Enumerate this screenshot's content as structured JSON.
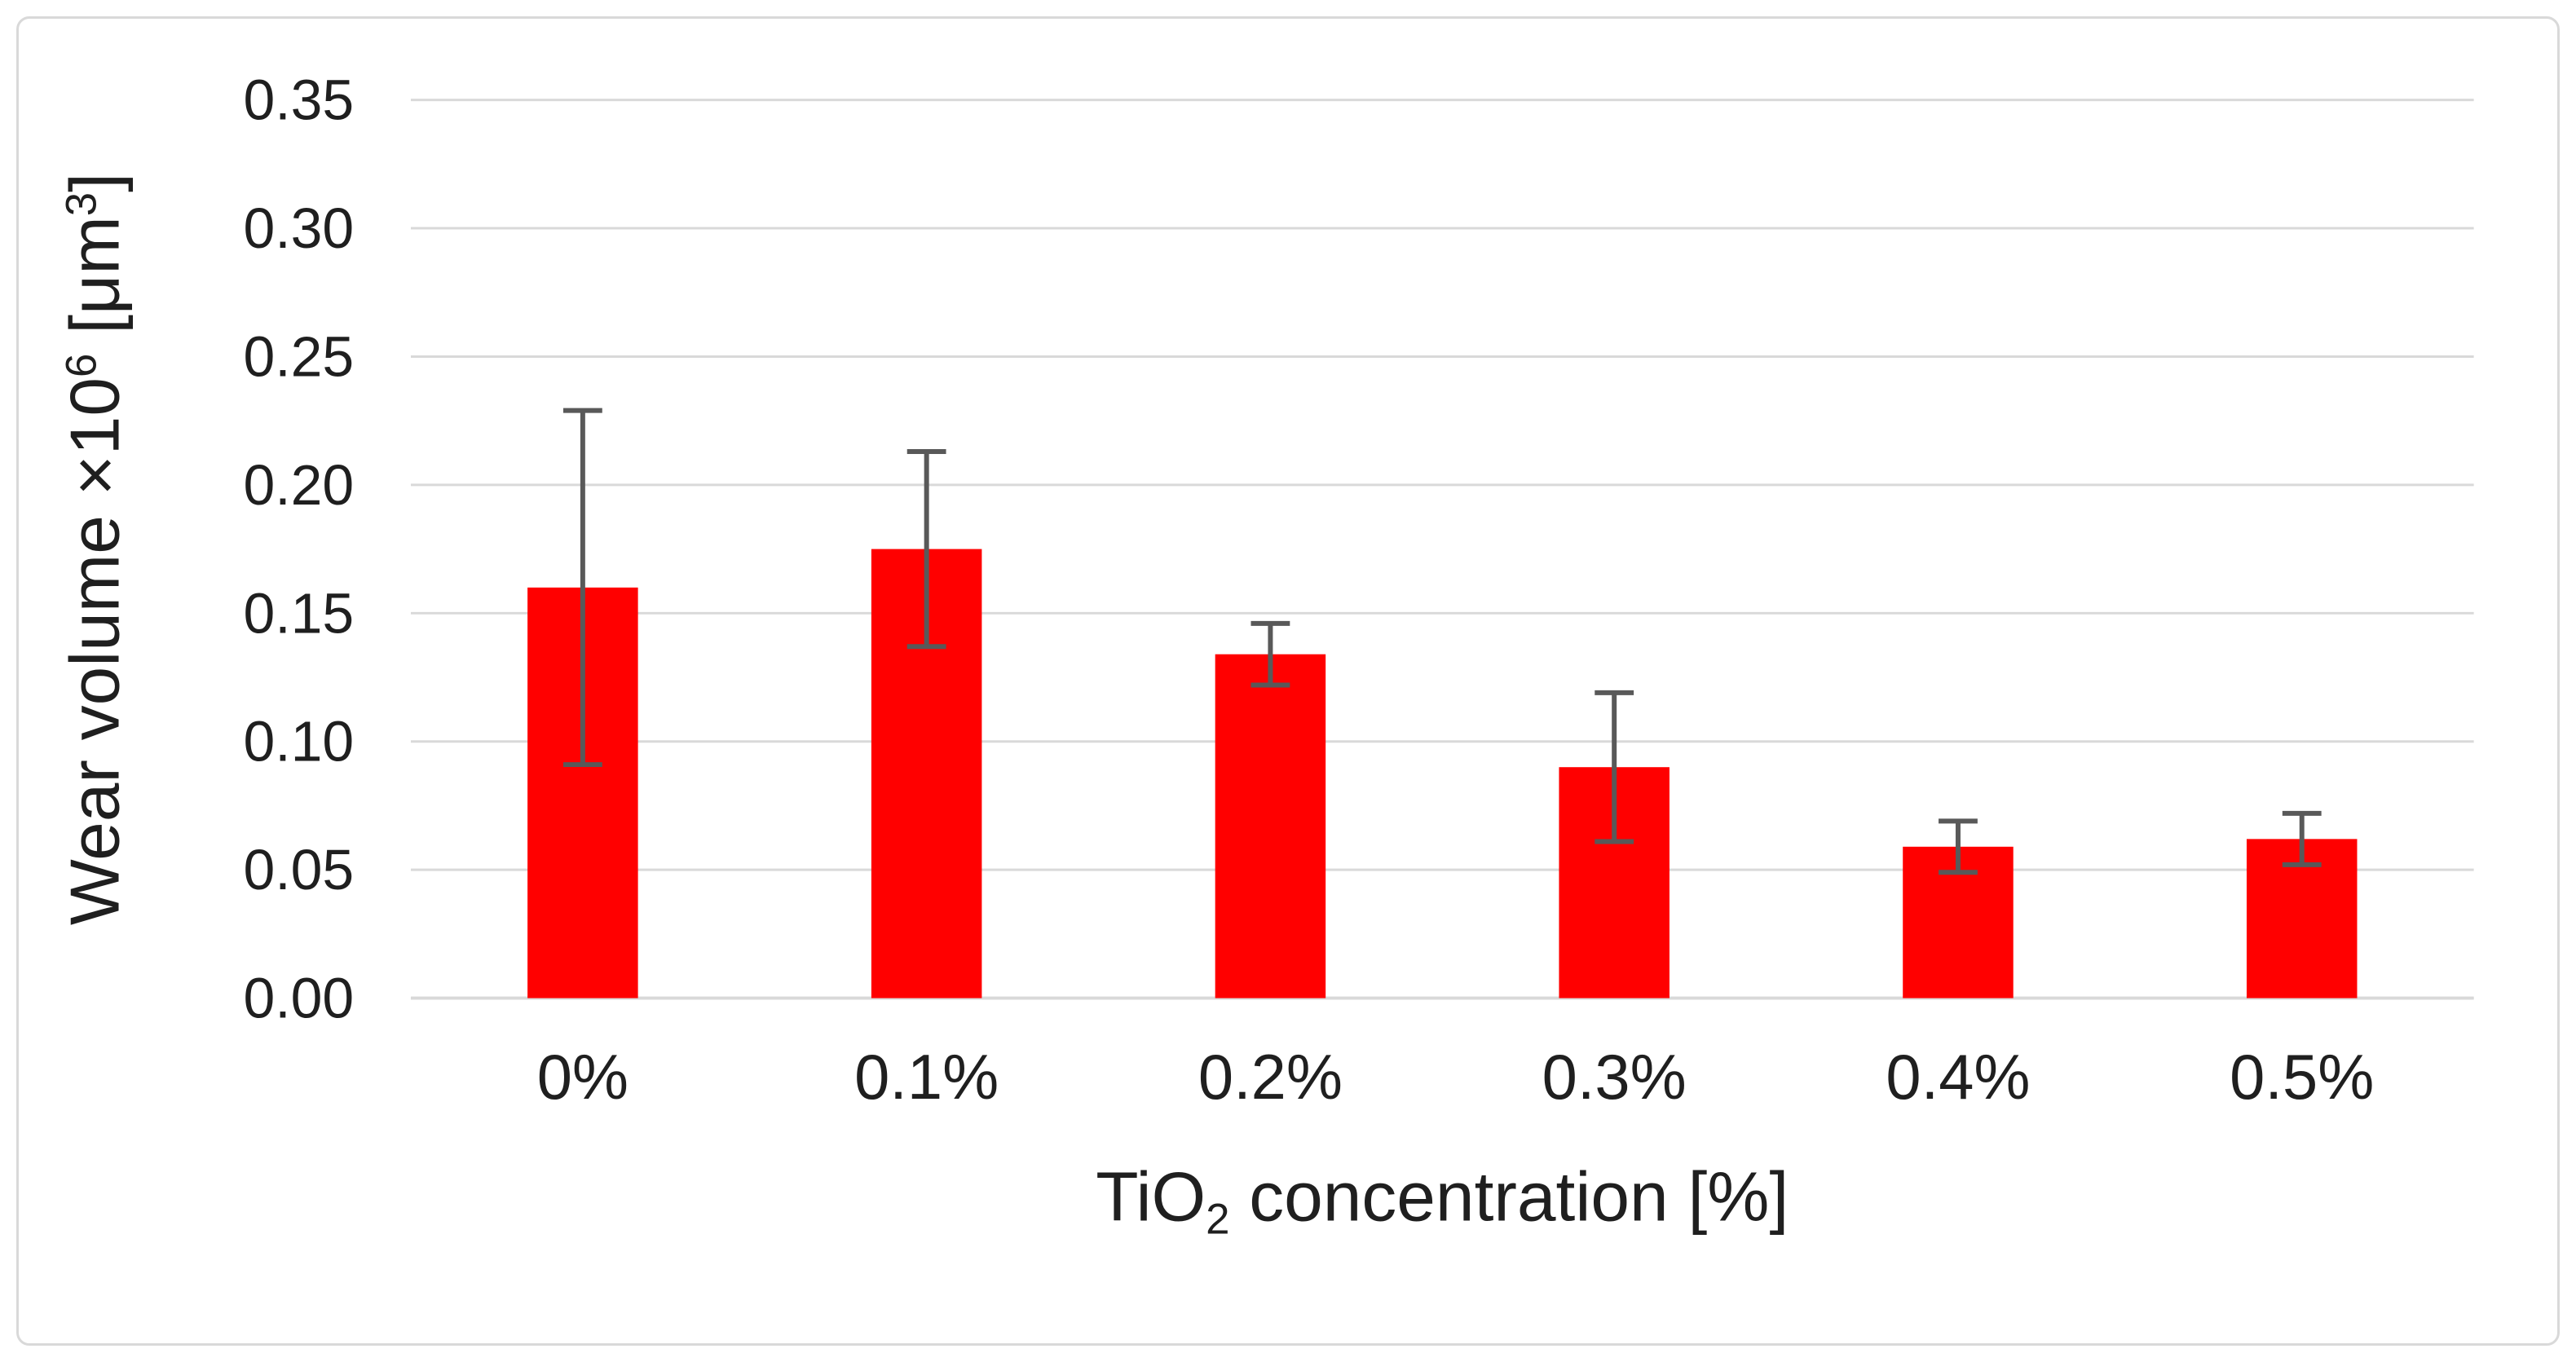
{
  "chart_data": {
    "type": "bar",
    "title": "",
    "categories": [
      "0%",
      "0.1%",
      "0.2%",
      "0.3%",
      "0.4%",
      "0.5%"
    ],
    "values": [
      0.16,
      0.175,
      0.134,
      0.09,
      0.059,
      0.062
    ],
    "error_plus": [
      0.069,
      0.038,
      0.012,
      0.029,
      0.01,
      0.01
    ],
    "error_minus": [
      0.069,
      0.038,
      0.012,
      0.029,
      0.01,
      0.01
    ],
    "xlabel": "TiO2 concentration [%]",
    "ylabel": "Wear volume ×10^6 [μm^3]",
    "xlabel_parts": [
      {
        "text": "TiO"
      },
      {
        "text": "2",
        "script": "sub"
      },
      {
        "text": " concentration [%]"
      }
    ],
    "ylabel_parts": [
      {
        "text": "Wear volume ×10"
      },
      {
        "text": "6",
        "script": "sup"
      },
      {
        "text": " [μm"
      },
      {
        "text": "3",
        "script": "sup"
      },
      {
        "text": "]"
      }
    ],
    "ylim": [
      0,
      0.35
    ],
    "ytick_step": 0.05,
    "ytick_labels": [
      "0.00",
      "0.05",
      "0.10",
      "0.15",
      "0.20",
      "0.25",
      "0.30",
      "0.35"
    ],
    "grid": true,
    "legend": "none",
    "colors": {
      "bar": "#FF0000",
      "error_bar": "#595959",
      "gridline": "#D9D9D9",
      "axis_line": "#D9D9D9",
      "text": "#1F1F1F",
      "frame_border": "#D9D9D9",
      "background": "#FFFFFF"
    }
  }
}
